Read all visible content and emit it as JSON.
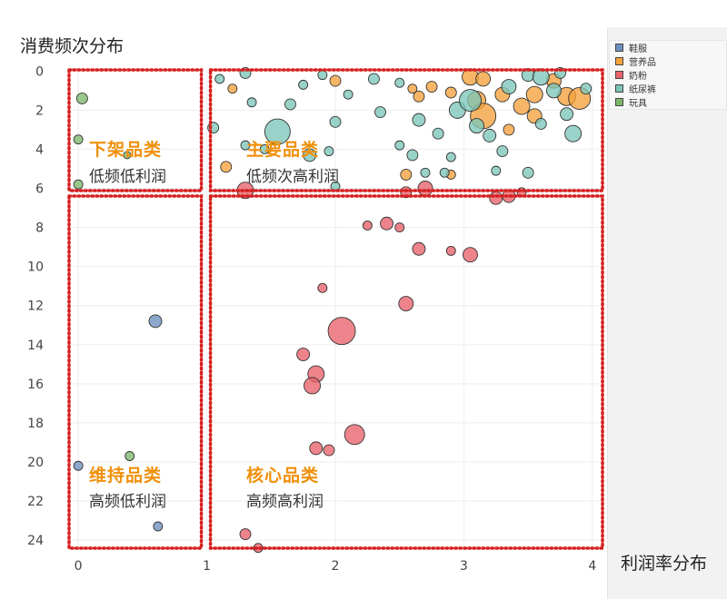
{
  "chart_data": {
    "type": "scatter",
    "ylabel": "消费频次分布",
    "xlabel": "利润率分布",
    "xlim": [
      -0.1,
      4.1
    ],
    "ylim": [
      -0.2,
      24.6
    ],
    "y_reversed": true,
    "x_ticks": [
      0,
      1,
      2,
      3,
      4
    ],
    "y_ticks": [
      0,
      2,
      4,
      6,
      8,
      10,
      12,
      14,
      16,
      18,
      20,
      22,
      24
    ],
    "grid": true,
    "legend_position": "top-right",
    "legend": [
      {
        "name": "鞋服",
        "color": "#6d8fbf"
      },
      {
        "name": "营养品",
        "color": "#f5a13c"
      },
      {
        "name": "奶粉",
        "color": "#e8626a"
      },
      {
        "name": "纸尿裤",
        "color": "#7cc5b9"
      },
      {
        "name": "玩具",
        "color": "#7cb86b"
      }
    ],
    "quadrant_split": {
      "x": 1.0,
      "y": 6.3
    },
    "quadrants": [
      {
        "title": "下架品类",
        "subtitle": "低频低利润"
      },
      {
        "title": "主要品类",
        "subtitle": "低频次高利润"
      },
      {
        "title": "维持品类",
        "subtitle": "高频低利润"
      },
      {
        "title": "核心品类",
        "subtitle": "高频高利润"
      }
    ],
    "series": [
      {
        "name": "鞋服",
        "points": [
          [
            0.6,
            12.8,
            7
          ],
          [
            0.0,
            20.2,
            5
          ],
          [
            0.62,
            23.3,
            5
          ]
        ]
      },
      {
        "name": "玩具",
        "points": [
          [
            0.03,
            1.4,
            6
          ],
          [
            0.0,
            3.5,
            5
          ],
          [
            0.0,
            5.8,
            5
          ],
          [
            0.38,
            4.3,
            4
          ],
          [
            0.4,
            19.7,
            5
          ]
        ]
      },
      {
        "name": "营养品",
        "points": [
          [
            3.05,
            0.3,
            9
          ],
          [
            3.15,
            0.4,
            8
          ],
          [
            3.3,
            1.2,
            8
          ],
          [
            3.1,
            1.5,
            10
          ],
          [
            3.15,
            2.3,
            14
          ],
          [
            3.45,
            1.8,
            9
          ],
          [
            3.55,
            1.2,
            9
          ],
          [
            3.7,
            0.5,
            8
          ],
          [
            3.8,
            1.3,
            10
          ],
          [
            3.9,
            1.4,
            12
          ],
          [
            2.9,
            1.1,
            6
          ],
          [
            2.75,
            0.8,
            6
          ],
          [
            2.6,
            0.9,
            5
          ],
          [
            2.65,
            1.3,
            6
          ],
          [
            3.35,
            3.0,
            6
          ],
          [
            3.55,
            2.3,
            8
          ],
          [
            2.0,
            0.5,
            6
          ],
          [
            2.55,
            5.3,
            6
          ],
          [
            2.9,
            5.3,
            5
          ],
          [
            1.2,
            0.9,
            5
          ],
          [
            1.15,
            4.9,
            6
          ]
        ]
      },
      {
        "name": "纸尿裤",
        "points": [
          [
            1.1,
            0.4,
            5
          ],
          [
            1.3,
            0.1,
            6
          ],
          [
            1.55,
            3.1,
            14
          ],
          [
            1.65,
            1.7,
            6
          ],
          [
            1.75,
            0.7,
            5
          ],
          [
            1.9,
            0.2,
            5
          ],
          [
            2.0,
            2.6,
            6
          ],
          [
            2.1,
            1.2,
            5
          ],
          [
            2.3,
            0.4,
            6
          ],
          [
            2.5,
            0.6,
            5
          ],
          [
            2.35,
            2.1,
            6
          ],
          [
            2.5,
            3.8,
            5
          ],
          [
            2.6,
            4.3,
            6
          ],
          [
            2.65,
            2.5,
            7
          ],
          [
            2.8,
            3.2,
            6
          ],
          [
            2.95,
            2.0,
            9
          ],
          [
            3.05,
            1.5,
            12
          ],
          [
            3.1,
            2.8,
            8
          ],
          [
            3.2,
            3.3,
            7
          ],
          [
            3.3,
            4.1,
            6
          ],
          [
            3.35,
            0.8,
            8
          ],
          [
            3.5,
            0.2,
            7
          ],
          [
            3.6,
            0.3,
            9
          ],
          [
            3.7,
            1.0,
            8
          ],
          [
            3.75,
            0.1,
            6
          ],
          [
            3.8,
            2.2,
            7
          ],
          [
            3.95,
            0.9,
            6
          ],
          [
            3.6,
            2.7,
            6
          ],
          [
            3.85,
            3.2,
            9
          ],
          [
            2.7,
            5.2,
            5
          ],
          [
            2.85,
            5.2,
            5
          ],
          [
            3.25,
            5.1,
            5
          ],
          [
            2.0,
            5.9,
            5
          ],
          [
            1.35,
            1.6,
            5
          ],
          [
            1.45,
            4.0,
            5
          ],
          [
            1.95,
            4.1,
            5
          ],
          [
            2.9,
            4.4,
            5
          ],
          [
            1.8,
            4.3,
            7
          ],
          [
            3.5,
            5.2,
            6
          ],
          [
            1.05,
            2.9,
            6
          ],
          [
            1.3,
            3.8,
            5
          ]
        ]
      },
      {
        "name": "奶粉",
        "points": [
          [
            1.3,
            6.1,
            9
          ],
          [
            2.7,
            6.0,
            8
          ],
          [
            2.55,
            6.2,
            6
          ],
          [
            3.25,
            6.5,
            7
          ],
          [
            3.35,
            6.4,
            7
          ],
          [
            3.45,
            6.2,
            5
          ],
          [
            2.25,
            7.9,
            5
          ],
          [
            2.4,
            7.8,
            7
          ],
          [
            2.5,
            8.0,
            5
          ],
          [
            2.65,
            9.1,
            7
          ],
          [
            2.9,
            9.2,
            5
          ],
          [
            3.05,
            9.4,
            8
          ],
          [
            1.9,
            11.1,
            5
          ],
          [
            2.55,
            11.9,
            8
          ],
          [
            2.05,
            13.3,
            15
          ],
          [
            1.75,
            14.5,
            7
          ],
          [
            1.85,
            15.5,
            9
          ],
          [
            1.82,
            16.1,
            9
          ],
          [
            2.15,
            18.6,
            11
          ],
          [
            1.85,
            19.3,
            7
          ],
          [
            1.95,
            19.4,
            6
          ],
          [
            1.3,
            23.7,
            6
          ],
          [
            1.4,
            24.4,
            5
          ]
        ]
      }
    ]
  }
}
